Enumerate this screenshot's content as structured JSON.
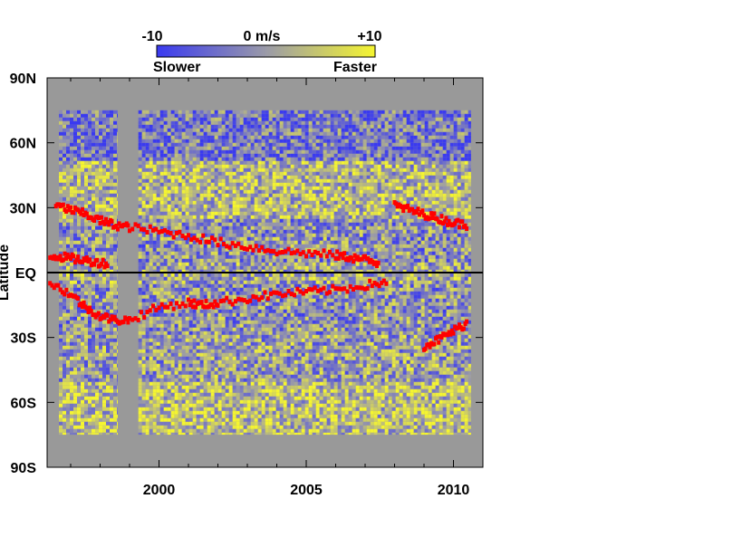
{
  "chart_data": {
    "type": "heatmap",
    "title": "",
    "xlabel": "",
    "ylabel": "Latitude",
    "xlim": [
      1996.2,
      2011.0
    ],
    "ylim": [
      -90,
      90
    ],
    "x_ticks": [
      {
        "value": 2000,
        "label": "2000"
      },
      {
        "value": 2005,
        "label": "2005"
      },
      {
        "value": 2010,
        "label": "2010"
      }
    ],
    "y_ticks": [
      {
        "value": 90,
        "label": "90N"
      },
      {
        "value": 60,
        "label": "60N"
      },
      {
        "value": 30,
        "label": "30N"
      },
      {
        "value": 0,
        "label": "EQ"
      },
      {
        "value": -30,
        "label": "30S"
      },
      {
        "value": -60,
        "label": "60S"
      },
      {
        "value": -90,
        "label": "90S"
      }
    ],
    "colorbar": {
      "min": -10,
      "max": 10,
      "units": "m/s",
      "tick_labels": [
        "-10",
        "0 m/s",
        "+10"
      ],
      "low_label": "Slower",
      "high_label": "Faster",
      "low_color": "#3a3af0",
      "mid_color": "#9a9aa8",
      "high_color": "#f5f530"
    },
    "background_color": "#999999",
    "data_coverage": {
      "lat_range": [
        -75,
        75
      ],
      "segments": [
        [
          1996.6,
          1998.6
        ],
        [
          1999.3,
          2010.6
        ]
      ],
      "gap": [
        1998.6,
        1999.3
      ]
    },
    "equator_line": true,
    "pattern_bands": [
      {
        "lat_min": 52,
        "lat_max": 75,
        "value": -4
      },
      {
        "lat_min": 25,
        "lat_max": 52,
        "value": 3
      },
      {
        "lat_min": 5,
        "lat_max": 25,
        "value": -1
      },
      {
        "lat_min": -5,
        "lat_max": 5,
        "value": 1
      },
      {
        "lat_min": -28,
        "lat_max": -5,
        "value": -1
      },
      {
        "lat_min": -50,
        "lat_max": -28,
        "value": 0.5
      },
      {
        "lat_min": -75,
        "lat_max": -50,
        "value": 4
      }
    ],
    "series": [
      {
        "color": "#ff0000",
        "x": [
          1996.5,
          1997.0,
          1997.5,
          1998.0,
          1998.5,
          1999.0,
          2000.0,
          2001.0,
          2002.0,
          2003.0,
          2004.0,
          2005.0,
          2006.0,
          2006.5,
          2007.0,
          2007.5
        ],
        "y": [
          31,
          29,
          27,
          24,
          22,
          21,
          19,
          17,
          14,
          12,
          10,
          9,
          8,
          7,
          6,
          4
        ]
      },
      {
        "color": "#ff0000",
        "x": [
          1996.3,
          1996.8,
          1997.3,
          1997.8,
          1998.3
        ],
        "y": [
          8,
          7,
          6,
          5,
          4
        ]
      },
      {
        "color": "#ff0000",
        "x": [
          1996.3,
          1997.0,
          1997.5,
          1998.0,
          1998.5,
          1999.0,
          2000.0,
          2001.0,
          2001.5,
          2002.0,
          2003.0,
          2004.0,
          2005.0,
          2006.0,
          2007.0,
          2007.8
        ],
        "y": [
          -5,
          -10,
          -16,
          -20,
          -22,
          -22,
          -16,
          -14,
          -15,
          -14,
          -12,
          -10,
          -9,
          -8,
          -6,
          -4
        ]
      },
      {
        "color": "#ff0000",
        "x": [
          2008.0,
          2008.5,
          2009.0,
          2009.5,
          2010.0,
          2010.5
        ],
        "y": [
          31,
          29,
          27,
          25,
          23,
          22
        ]
      },
      {
        "color": "#ff0000",
        "x": [
          2009.0,
          2009.5,
          2010.0,
          2010.5
        ],
        "y": [
          -34,
          -31,
          -27,
          -23
        ]
      }
    ]
  }
}
